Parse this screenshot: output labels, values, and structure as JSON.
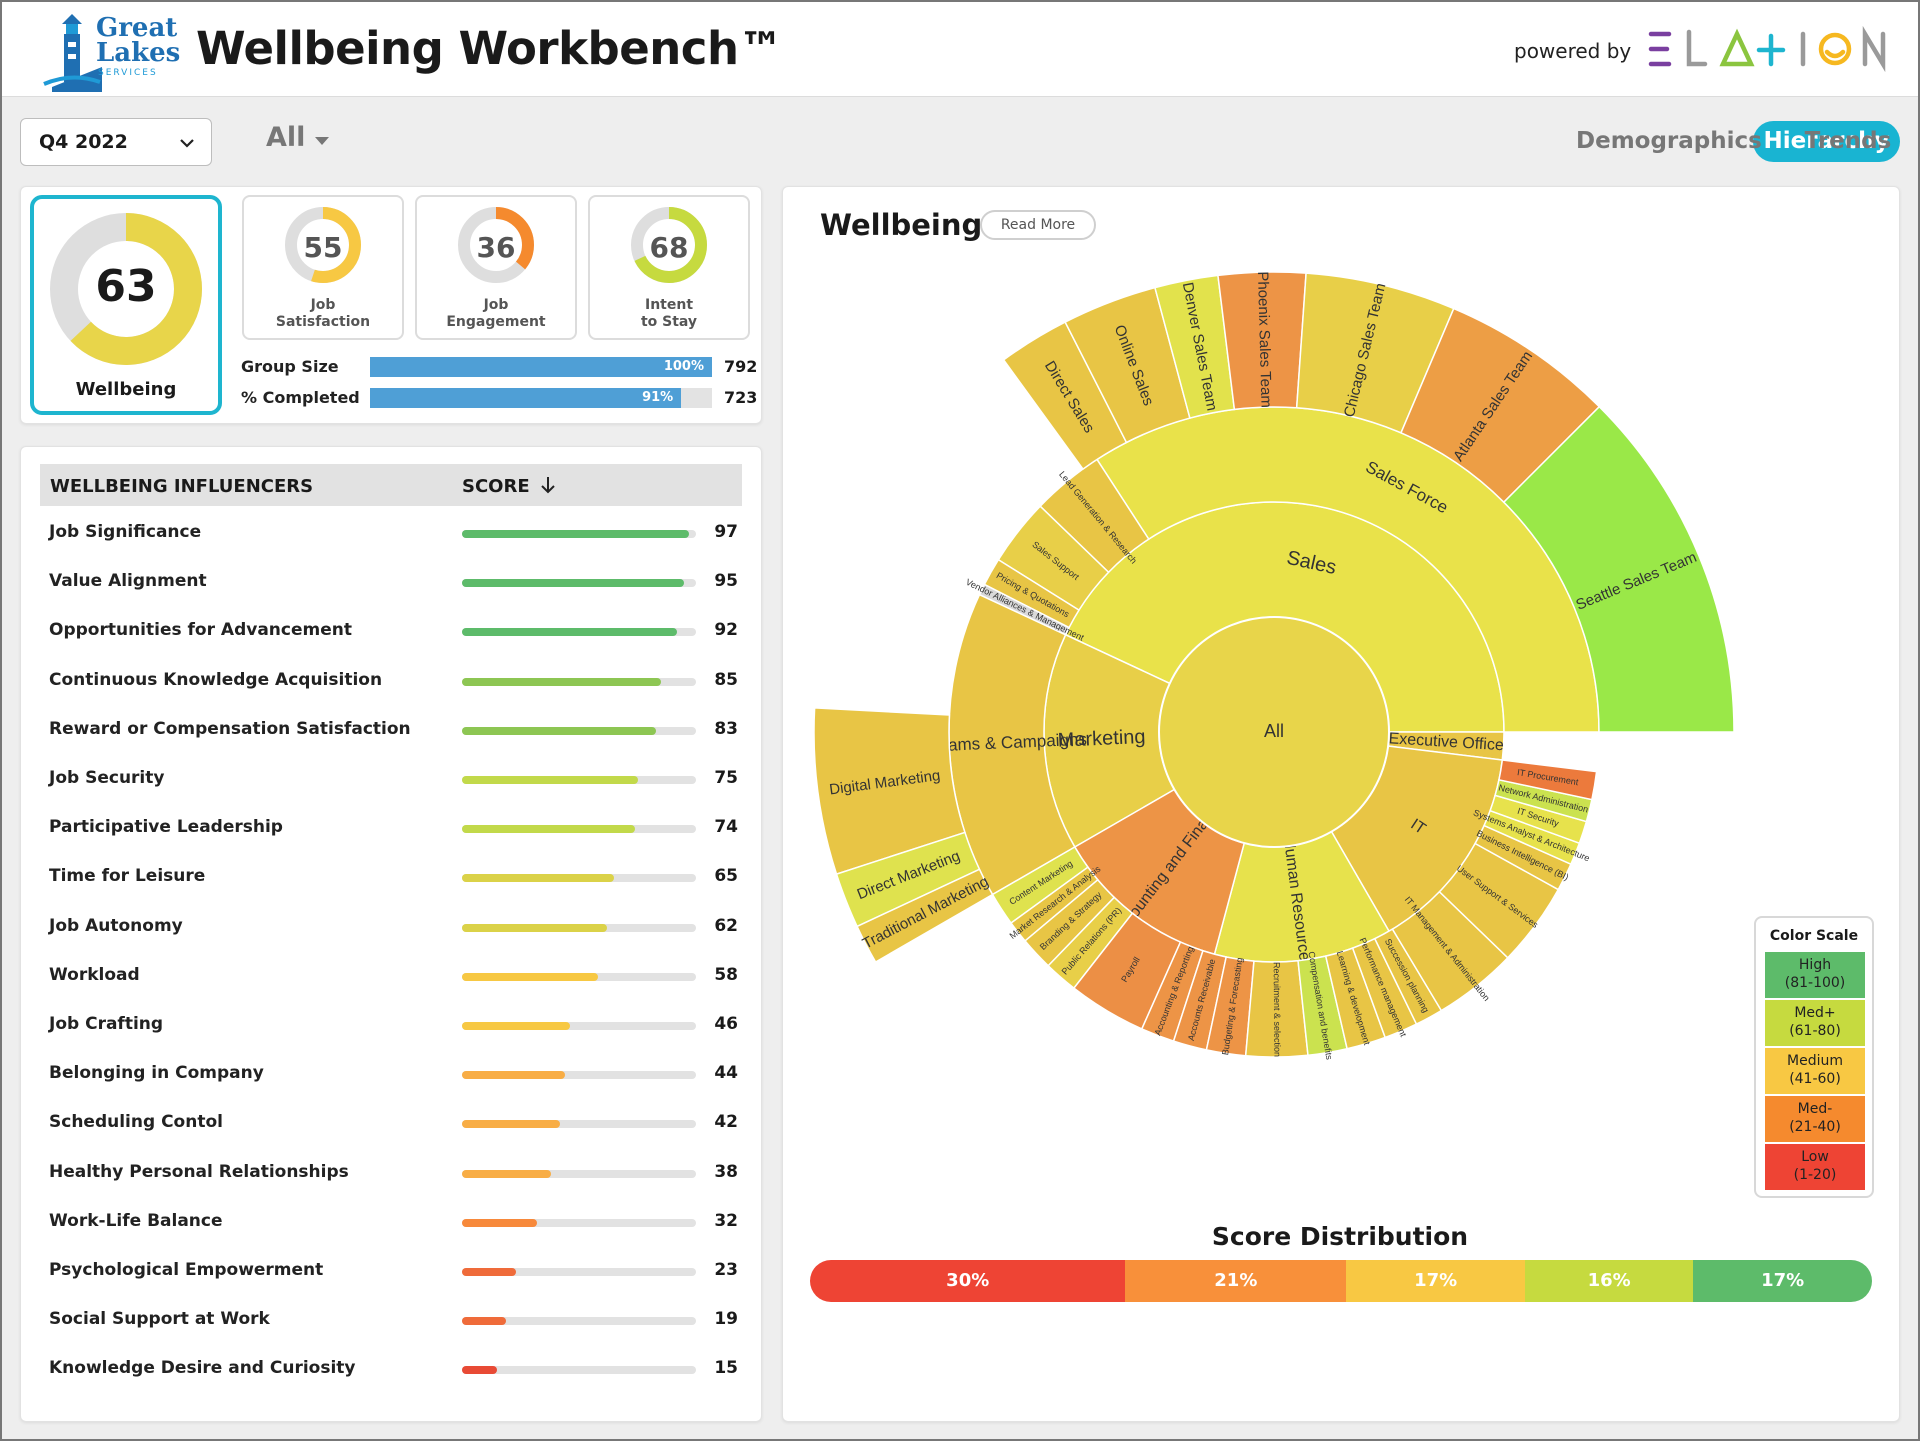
{
  "header": {
    "logo_lines": [
      "Great",
      "Lakes"
    ],
    "logo_sub": "SERVICES",
    "title": "Wellbeing Workbench™",
    "powered_by": "powered by",
    "brand": "ELATION"
  },
  "filters": {
    "period": "Q4 2022",
    "scope": "All"
  },
  "tabs": [
    {
      "label": "Hierarchy",
      "active": true
    },
    {
      "label": "Demographics",
      "active": false
    },
    {
      "label": "Trends",
      "active": false
    }
  ],
  "summary": {
    "wellbeing": {
      "score": "63",
      "label": "Wellbeing",
      "value": 63
    },
    "metrics": [
      {
        "score": "55",
        "line1": "Job",
        "line2": "Satisfaction",
        "value": 55,
        "color": "#f7c843"
      },
      {
        "score": "36",
        "line1": "Job",
        "line2": "Engagement",
        "value": 36,
        "color": "#f58a2e"
      },
      {
        "score": "68",
        "line1": "Intent",
        "line2": "to Stay",
        "value": 68,
        "color": "#c6da3f"
      }
    ],
    "group_size": {
      "label": "Group Size",
      "pct": "100%",
      "fraction": 1.0,
      "count": "792"
    },
    "completed": {
      "label": "% Completed",
      "pct": "91%",
      "fraction": 0.91,
      "count": "723"
    }
  },
  "influencers": {
    "col_name": "WELLBEING INFLUENCERS",
    "col_score": "SCORE",
    "rows": [
      {
        "name": "Job Significance",
        "score": "97",
        "value": 97,
        "color": "#5dbb6a"
      },
      {
        "name": "Value Alignment",
        "score": "95",
        "value": 95,
        "color": "#5dbb6a"
      },
      {
        "name": "Opportunities for Advancement",
        "score": "92",
        "value": 92,
        "color": "#5dbb6a"
      },
      {
        "name": "Continuous Knowledge Acquisition",
        "score": "85",
        "value": 85,
        "color": "#8dc653"
      },
      {
        "name": "Reward or Compensation Satisfaction",
        "score": "83",
        "value": 83,
        "color": "#8dc653"
      },
      {
        "name": "Job Security",
        "score": "75",
        "value": 75,
        "color": "#c2d94a"
      },
      {
        "name": "Participative Leadership",
        "score": "74",
        "value": 74,
        "color": "#c2d94a"
      },
      {
        "name": "Time for Leisure",
        "score": "65",
        "value": 65,
        "color": "#dbd248"
      },
      {
        "name": "Job Autonomy",
        "score": "62",
        "value": 62,
        "color": "#dbd248"
      },
      {
        "name": "Workload",
        "score": "58",
        "value": 58,
        "color": "#f7c843"
      },
      {
        "name": "Job Crafting",
        "score": "46",
        "value": 46,
        "color": "#f7c843"
      },
      {
        "name": "Belonging in Company",
        "score": "44",
        "value": 44,
        "color": "#f8ad45"
      },
      {
        "name": "Scheduling Contol",
        "score": "42",
        "value": 42,
        "color": "#f8ad45"
      },
      {
        "name": "Healthy Personal Relationships",
        "score": "38",
        "value": 38,
        "color": "#f8ad45"
      },
      {
        "name": "Work-Life Balance",
        "score": "32",
        "value": 32,
        "color": "#f7893b"
      },
      {
        "name": "Psychological Empowerment",
        "score": "23",
        "value": 23,
        "color": "#ef6b3a"
      },
      {
        "name": "Social Support at Work",
        "score": "19",
        "value": 19,
        "color": "#ef6b3a"
      },
      {
        "name": "Knowledge Desire and Curiosity",
        "score": "15",
        "value": 15,
        "color": "#e84a35"
      }
    ]
  },
  "sunburst": {
    "title": "Wellbeing",
    "read_more": "Read More",
    "center": "All",
    "departments": [
      {
        "name": "Sales",
        "color": "#e9e24a"
      },
      {
        "name": "Marketing",
        "color": "#e8cf48"
      },
      {
        "name": "Executive Office",
        "color": "#e8c545"
      },
      {
        "name": "IT",
        "color": "#e8c545"
      },
      {
        "name": "Human Resources",
        "color": "#e7e24c"
      },
      {
        "name": "Accounting and Finance",
        "color": "#ed9446"
      }
    ],
    "teams": [
      {
        "name": "Sales Force",
        "color": "#e9e24a"
      },
      {
        "name": "Lead Generation & Research",
        "color": "#e8c545"
      },
      {
        "name": "Sales Support",
        "color": "#e8cf48"
      },
      {
        "name": "Pricing & Quotations",
        "color": "#e8c545"
      },
      {
        "name": "Vendor Alliances & Management",
        "color": "#d9d9d9"
      },
      {
        "name": "Programs & Campaigns",
        "color": "#e8c545"
      },
      {
        "name": "Content Marketing",
        "color": "#dfe24e"
      },
      {
        "name": "Market Research & Analysis",
        "color": "#e8c545"
      },
      {
        "name": "Branding & Strategy",
        "color": "#e8c545"
      },
      {
        "name": "Public Relations (PR)",
        "color": "#e8cf48"
      },
      {
        "name": "Payroll",
        "color": "#ec8f45"
      },
      {
        "name": "Accounting & Reporting",
        "color": "#ed9446"
      },
      {
        "name": "Accounts Receivable",
        "color": "#ed9446"
      },
      {
        "name": "Budgeting & Forecasting",
        "color": "#ed9446"
      },
      {
        "name": "Recruitment & selection",
        "color": "#e8c545"
      },
      {
        "name": "Compensation and benefits",
        "color": "#cbe24f"
      },
      {
        "name": "Learning & development",
        "color": "#e8c545"
      },
      {
        "name": "Performance management",
        "color": "#e8c545"
      },
      {
        "name": "Succession planning",
        "color": "#e8c545"
      },
      {
        "name": "IT Management & Administration",
        "color": "#e8c545"
      },
      {
        "name": "User Support & Services",
        "color": "#e8c545"
      },
      {
        "name": "Business Intelligence (BI)",
        "color": "#e8c545"
      },
      {
        "name": "Systems Analyst & Architecture",
        "color": "#e7e24c"
      },
      {
        "name": "IT Security",
        "color": "#e7e24c"
      },
      {
        "name": "Network Administration",
        "color": "#cbe24f"
      },
      {
        "name": "IT Procurement",
        "color": "#ec7a3c"
      }
    ],
    "outer": [
      {
        "name": "Direct Sales",
        "color": "#e8c545"
      },
      {
        "name": "Online Sales",
        "color": "#e8c545"
      },
      {
        "name": "Denver Sales Team",
        "color": "#e2e24c"
      },
      {
        "name": "Phoenix Sales Team",
        "color": "#ed9446"
      },
      {
        "name": "Chicago Sales Team",
        "color": "#e8cf48"
      },
      {
        "name": "Atlanta Sales Team",
        "color": "#ed9e45"
      },
      {
        "name": "Seattle Sales Team",
        "color": "#9ae848"
      },
      {
        "name": "Digital Marketing",
        "color": "#e8c545"
      },
      {
        "name": "Direct Marketing",
        "color": "#dfe24e"
      },
      {
        "name": "Traditional Marketing",
        "color": "#e8c545"
      }
    ]
  },
  "color_scale": {
    "title": "Color Scale",
    "items": [
      {
        "name": "High",
        "range": "(81-100)",
        "color": "#5dbb6a"
      },
      {
        "name": "Med+",
        "range": "(61-80)",
        "color": "#c6da3f"
      },
      {
        "name": "Medium",
        "range": "(41-60)",
        "color": "#f8c843"
      },
      {
        "name": "Med-",
        "range": "(21-40)",
        "color": "#f58a2e"
      },
      {
        "name": "Low",
        "range": "(1-20)",
        "color": "#ee4434"
      }
    ]
  },
  "distribution": {
    "title": "Score Distribution",
    "segments": [
      {
        "label": "30%",
        "value": 30,
        "color": "#ee4434"
      },
      {
        "label": "21%",
        "value": 21,
        "color": "#f8903a"
      },
      {
        "label": "17%",
        "value": 17,
        "color": "#f8c843"
      },
      {
        "label": "16%",
        "value": 16,
        "color": "#c6da3f"
      },
      {
        "label": "17%",
        "value": 17,
        "color": "#5dbb6a"
      }
    ]
  }
}
